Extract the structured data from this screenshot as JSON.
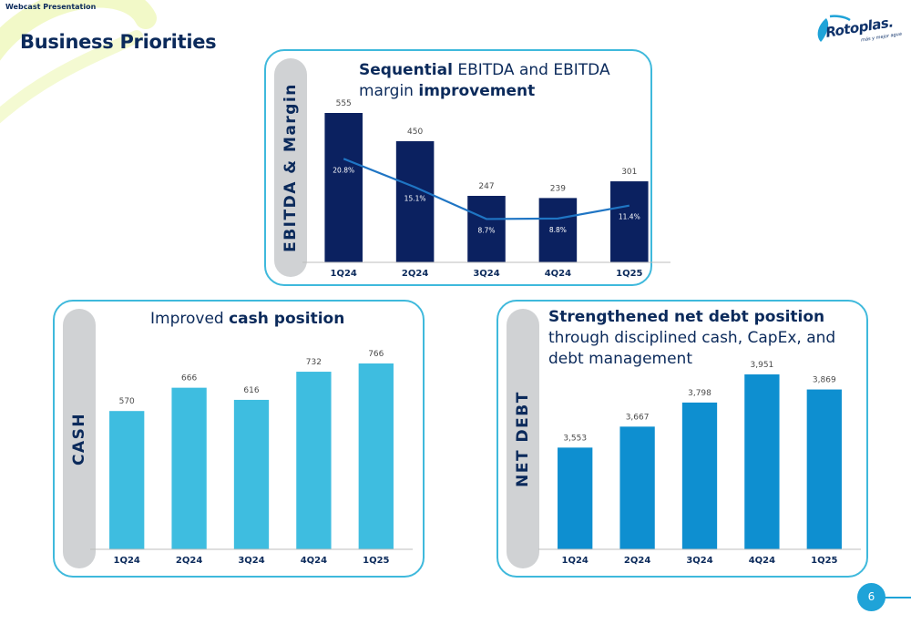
{
  "header": {
    "topline": "Webcast Presentation",
    "title": "Business Priorities",
    "logo": {
      "name": "Rotoplas.",
      "tagline": "más y mejor agua"
    },
    "page_number": "6"
  },
  "colors": {
    "ebitda_bar": "#0b2160",
    "margin_line": "#1f75c4",
    "cash_bar": "#3ebde0",
    "net_debt_bar": "#0e8fd0",
    "panel_border": "#3fb9dc",
    "side_bar": "#d0d2d4",
    "text": "#0b2a5b"
  },
  "panels": {
    "ebitda": {
      "side_label": "EBITDA & Margin",
      "title_part1": "Sequential",
      "title_part2": " EBITDA and EBITDA margin ",
      "title_part3": "improvement"
    },
    "cash": {
      "side_label": "CASH",
      "title_part1": "Improved ",
      "title_part2": "cash position"
    },
    "net_debt": {
      "side_label": "NET DEBT",
      "title_part1": "Strengthened net debt position",
      "title_part2": " through disciplined cash, CapEx, and debt management"
    }
  },
  "chart_data": [
    {
      "id": "ebitda",
      "type": "bar",
      "categories": [
        "1Q24",
        "2Q24",
        "3Q24",
        "4Q24",
        "1Q25"
      ],
      "series": [
        {
          "values": [
            555,
            450,
            247,
            239,
            301
          ],
          "labels": [
            "555",
            "450",
            "247",
            "239",
            "301"
          ]
        },
        {
          "type": "line",
          "values": [
            20.8,
            15.1,
            8.7,
            8.8,
            11.4
          ],
          "labels": [
            "20.8%",
            "15.1%",
            "8.7%",
            "8.8%",
            "11.4%"
          ]
        }
      ]
    },
    {
      "id": "cash",
      "type": "bar",
      "categories": [
        "1Q24",
        "2Q24",
        "3Q24",
        "4Q24",
        "1Q25"
      ],
      "values": [
        570,
        666,
        616,
        732,
        766
      ],
      "labels": [
        "570",
        "666",
        "616",
        "732",
        "766"
      ]
    },
    {
      "id": "net_debt",
      "type": "bar",
      "categories": [
        "1Q24",
        "2Q24",
        "3Q24",
        "4Q24",
        "1Q25"
      ],
      "values": [
        3553,
        3667,
        3798,
        3951,
        3869
      ],
      "labels": [
        "3,553",
        "3,667",
        "3,798",
        "3,951",
        "3,869"
      ]
    }
  ]
}
